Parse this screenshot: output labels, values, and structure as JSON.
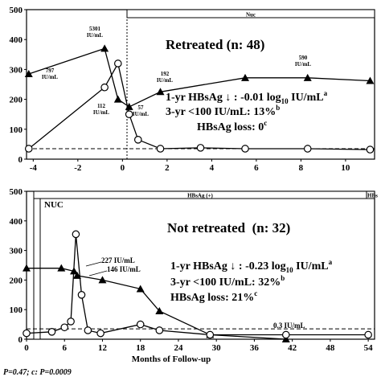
{
  "chart_data": [
    {
      "type": "line",
      "title": "Retreated (n: 48)",
      "xlabel": "",
      "ylabel": "",
      "xlim": [
        -4.3,
        11.3
      ],
      "ylim": [
        0,
        500
      ],
      "x_ticks": [
        "-4",
        "-2",
        "0",
        "2",
        "4",
        "6",
        "8",
        "10"
      ],
      "y_ticks": [
        "0",
        "100",
        "200",
        "300",
        "400",
        "500"
      ],
      "series": [
        {
          "marker": "triangle",
          "x": [
            -4.2,
            -0.8,
            -0.2,
            0.3,
            1.7,
            5.5,
            8.3,
            11.1
          ],
          "y": [
            285,
            370,
            200,
            175,
            225,
            272,
            272,
            262
          ]
        },
        {
          "marker": "circle",
          "x": [
            -4.2,
            -0.8,
            -0.2,
            0.3,
            0.7,
            1.7,
            3.5,
            5.5,
            8.3,
            11.1
          ],
          "y": [
            35,
            240,
            320,
            150,
            65,
            35,
            38,
            35,
            35,
            32
          ]
        }
      ],
      "reference_line": {
        "y": 35,
        "style": "dashed"
      },
      "bar_label": "Nuc",
      "point_labels": [
        "5301\nIU/mL",
        "797\nIU/mL",
        "112\nIU/mL",
        "57\nIU/mL",
        "192\nIU/mL",
        "590\nIU/mL"
      ],
      "annotations": {
        "line1_pre": "1-yr HBsAg ↓ : -0.01 log",
        "line1_sub": "10",
        "line1_post": " IU/mL",
        "line1_sup": "a",
        "line2": "3-yr <100 IU/mL: 13%",
        "line2_sup": "b",
        "line3": "HBsAg loss: 0",
        "line3_sup": "c"
      }
    },
    {
      "type": "line",
      "title": "Not retreated  (n: 32)",
      "xlabel": "Months of Follow-up",
      "ylabel": "",
      "xlim": [
        0,
        55
      ],
      "ylim": [
        0,
        500
      ],
      "x_ticks": [
        "0",
        "6",
        "12",
        "18",
        "24",
        "30",
        "36",
        "42",
        "48",
        "54"
      ],
      "y_ticks": [
        "0",
        "100",
        "200",
        "300",
        "400",
        "500"
      ],
      "series": [
        {
          "marker": "triangle",
          "x": [
            0,
            5.5,
            7.5,
            8,
            12,
            18,
            21,
            29,
            41
          ],
          "y": [
            240,
            240,
            230,
            215,
            200,
            170,
            95,
            15,
            0
          ]
        },
        {
          "marker": "circle",
          "x": [
            0,
            4,
            6,
            7,
            7.8,
            8.7,
            9.7,
            11.7,
            18,
            21,
            29,
            41,
            54
          ],
          "y": [
            20,
            25,
            40,
            60,
            355,
            150,
            30,
            20,
            50,
            30,
            15,
            15,
            15
          ]
        }
      ],
      "reference_line": {
        "y": 35,
        "style": "dashed"
      },
      "bar_labels": [
        "HBsAg (+)",
        "HBs",
        "NUC"
      ],
      "point_labels": [
        "227 IU/mL",
        "146 IU/mL",
        "0.3 IU/mL"
      ],
      "annotations": {
        "line1_pre": "1-yr HBsAg ↓ : -0.23 log",
        "line1_sub": "10",
        "line1_post": " IU/mL",
        "line1_sup": "a",
        "line2": "3-yr <100 IU/mL: 32%",
        "line2_sup": "b",
        "line3": "HBsAg loss: 21%",
        "line3_sup": "c"
      }
    }
  ],
  "footnote": "P=0.47; c: P=0.0009"
}
